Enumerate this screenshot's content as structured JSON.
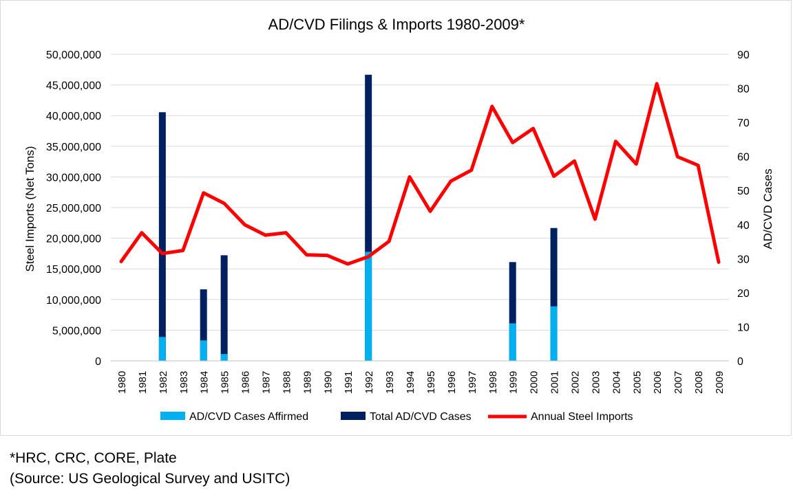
{
  "chart_data": {
    "type": "bar",
    "title": "AD/CVD Filings & Imports 1980-2009*",
    "ylabel": "Steel Imports (Net Tons)",
    "y2label": "AD/CVD Cases",
    "categories": [
      "1980",
      "1981",
      "1982",
      "1983",
      "1984",
      "1985",
      "1986",
      "1987",
      "1988",
      "1989",
      "1990",
      "1991",
      "1992",
      "1993",
      "1994",
      "1995",
      "1996",
      "1997",
      "1998",
      "1999",
      "2000",
      "2001",
      "2002",
      "2003",
      "2004",
      "2005",
      "2006",
      "2007",
      "2008",
      "2009"
    ],
    "ylim": [
      0,
      50000000
    ],
    "y2lim": [
      0,
      90
    ],
    "y_ticks": [
      "0",
      "5,000,000",
      "10,000,000",
      "15,000,000",
      "20,000,000",
      "25,000,000",
      "30,000,000",
      "35,000,000",
      "40,000,000",
      "45,000,000",
      "50,000,000"
    ],
    "y2_ticks": [
      "0",
      "10",
      "20",
      "30",
      "40",
      "50",
      "60",
      "70",
      "80",
      "90"
    ],
    "series": [
      {
        "name": "AD/CVD Cases Affirmed",
        "kind": "bar",
        "axis": "right",
        "color": "#00b0f0",
        "values": [
          0,
          0,
          7,
          0,
          6,
          2,
          0,
          0,
          0,
          0,
          0,
          0,
          32,
          0,
          0,
          0,
          0,
          0,
          0,
          11,
          0,
          16,
          0,
          0,
          0,
          0,
          0,
          0,
          0,
          0
        ]
      },
      {
        "name": "Total AD/CVD Cases",
        "kind": "bar",
        "axis": "right",
        "color": "#002060",
        "values": [
          0,
          0,
          73,
          0,
          21,
          31,
          0,
          0,
          0,
          0,
          0,
          0,
          84,
          0,
          0,
          0,
          0,
          0,
          0,
          29,
          0,
          39,
          0,
          0,
          0,
          0,
          0,
          0,
          0,
          0
        ]
      },
      {
        "name": "Annual Steel Imports",
        "kind": "line",
        "axis": "left",
        "color": "#ff0000",
        "values": [
          16200000,
          20900000,
          17500000,
          18000000,
          27400000,
          25700000,
          22200000,
          20500000,
          20900000,
          17300000,
          17200000,
          15800000,
          17000000,
          19500000,
          30000000,
          24400000,
          29300000,
          31100000,
          41500000,
          35600000,
          37900000,
          30100000,
          32600000,
          23100000,
          35800000,
          32100000,
          45200000,
          33300000,
          31900000,
          16100000
        ]
      }
    ],
    "legend": {
      "position": "bottom"
    },
    "grid": true
  },
  "footnote": {
    "line1": "*HRC, CRC, CORE, Plate",
    "line2": "(Source: US Geological Survey and USITC)"
  }
}
